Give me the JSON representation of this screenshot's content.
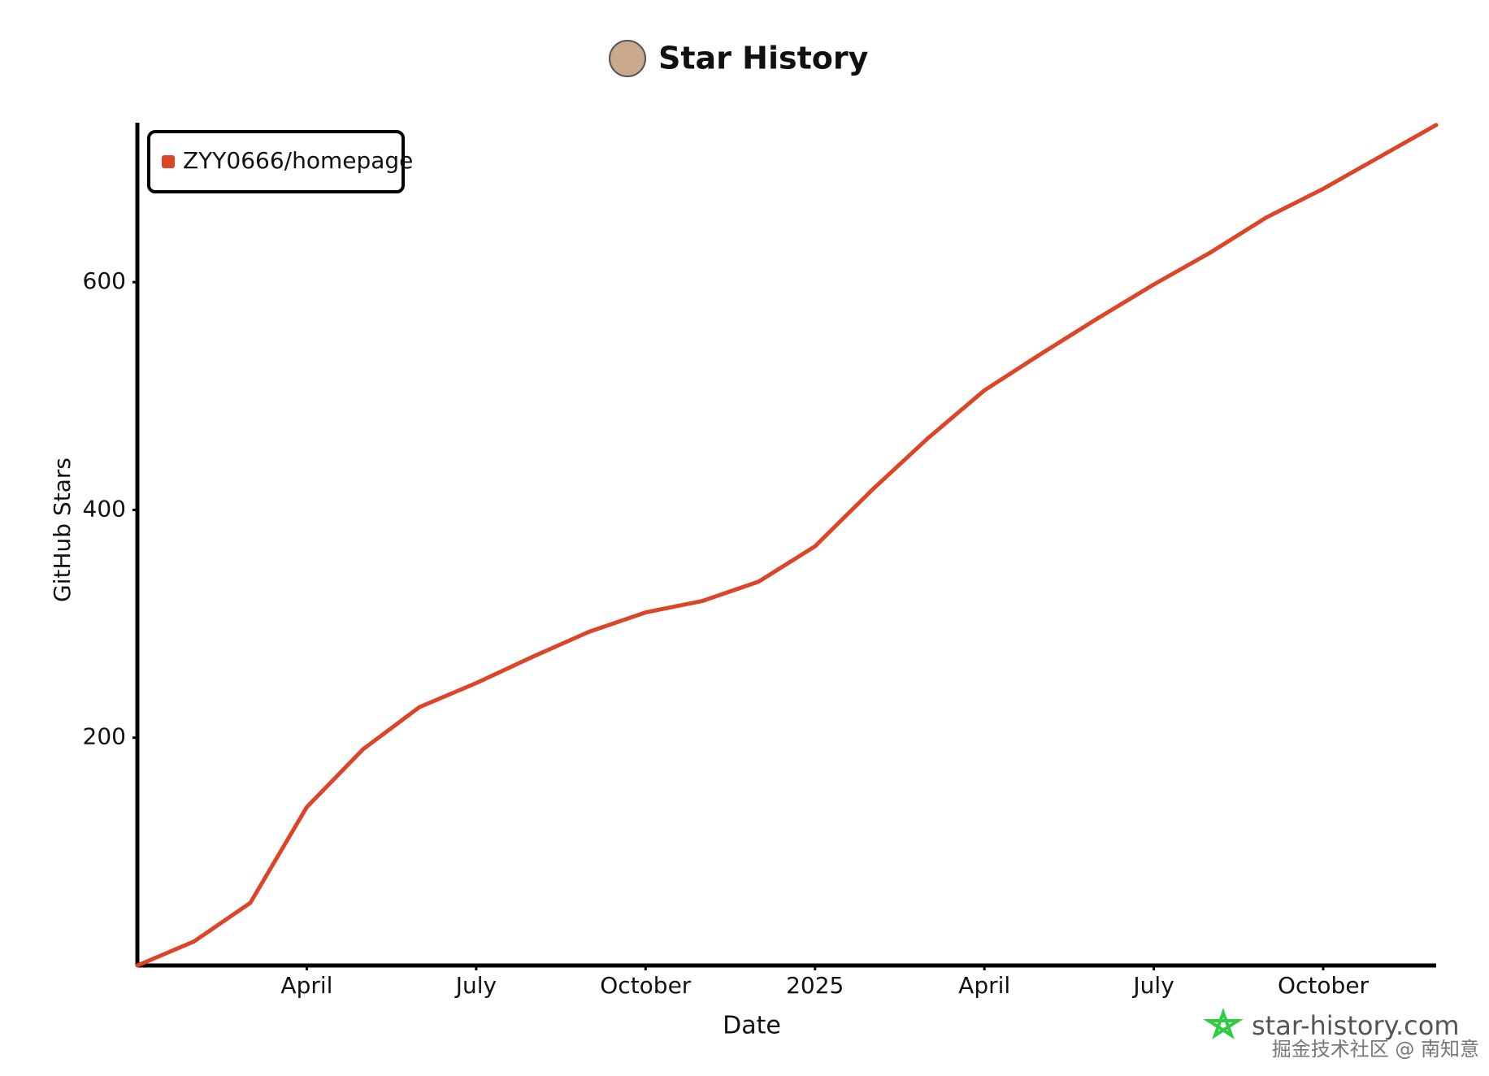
{
  "chart_data": {
    "type": "line",
    "title": "Star History",
    "x_label": "Date",
    "y_label": "GitHub Stars",
    "x": [
      "2024-01",
      "2024-02",
      "2024-03",
      "2024-04",
      "2024-05",
      "2024-06",
      "2024-07",
      "2024-08",
      "2024-09",
      "2024-10",
      "2024-11",
      "2024-12",
      "2025-01",
      "2025-02",
      "2025-03",
      "2025-04",
      "2025-05",
      "2025-06",
      "2025-07",
      "2025-08",
      "2025-09",
      "2025-10",
      "2025-11",
      "2025-12"
    ],
    "series": [
      {
        "name": "ZYY0666/homepage",
        "color": "#dd4528",
        "values": [
          0,
          21,
          55,
          139,
          190,
          227,
          248,
          271,
          293,
          310,
          320,
          337,
          368,
          417,
          463,
          505,
          537,
          568,
          598,
          626,
          657,
          682,
          710,
          738
        ]
      }
    ],
    "xlim": [
      "2024-01",
      "2025-12"
    ],
    "xticks": [
      {
        "value": "2024-04",
        "label": "April"
      },
      {
        "value": "2024-07",
        "label": "July"
      },
      {
        "value": "2024-10",
        "label": "October"
      },
      {
        "value": "2025-01",
        "label": "2025"
      },
      {
        "value": "2025-04",
        "label": "April"
      },
      {
        "value": "2025-07",
        "label": "July"
      },
      {
        "value": "2025-10",
        "label": "October"
      }
    ],
    "ylim": [
      0,
      740
    ],
    "yticks": [
      200,
      400,
      600
    ],
    "legend": "top-left",
    "watermark": "star-history.com",
    "credit": "掘金技术社区 @ 南知意"
  }
}
